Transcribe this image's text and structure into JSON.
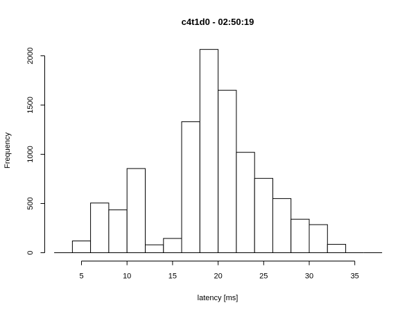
{
  "chart_data": {
    "type": "bar",
    "title": "c4t1d0 - 02:50:19",
    "xlabel": "latency [ms]",
    "ylabel": "Frequency",
    "bin_edges": [
      2,
      4,
      6,
      8,
      10,
      12,
      14,
      16,
      18,
      20,
      22,
      24,
      26,
      28,
      30,
      32,
      34,
      36,
      38
    ],
    "values": [
      0,
      120,
      505,
      435,
      855,
      80,
      145,
      1330,
      2065,
      1650,
      1020,
      755,
      550,
      340,
      285,
      85,
      0,
      0
    ],
    "xlim": [
      2,
      38
    ],
    "ylim": [
      0,
      2100
    ],
    "x_ticks": [
      5,
      10,
      15,
      20,
      25,
      30,
      35
    ],
    "y_ticks": [
      0,
      500,
      1000,
      1500,
      2000
    ],
    "grid": false
  }
}
